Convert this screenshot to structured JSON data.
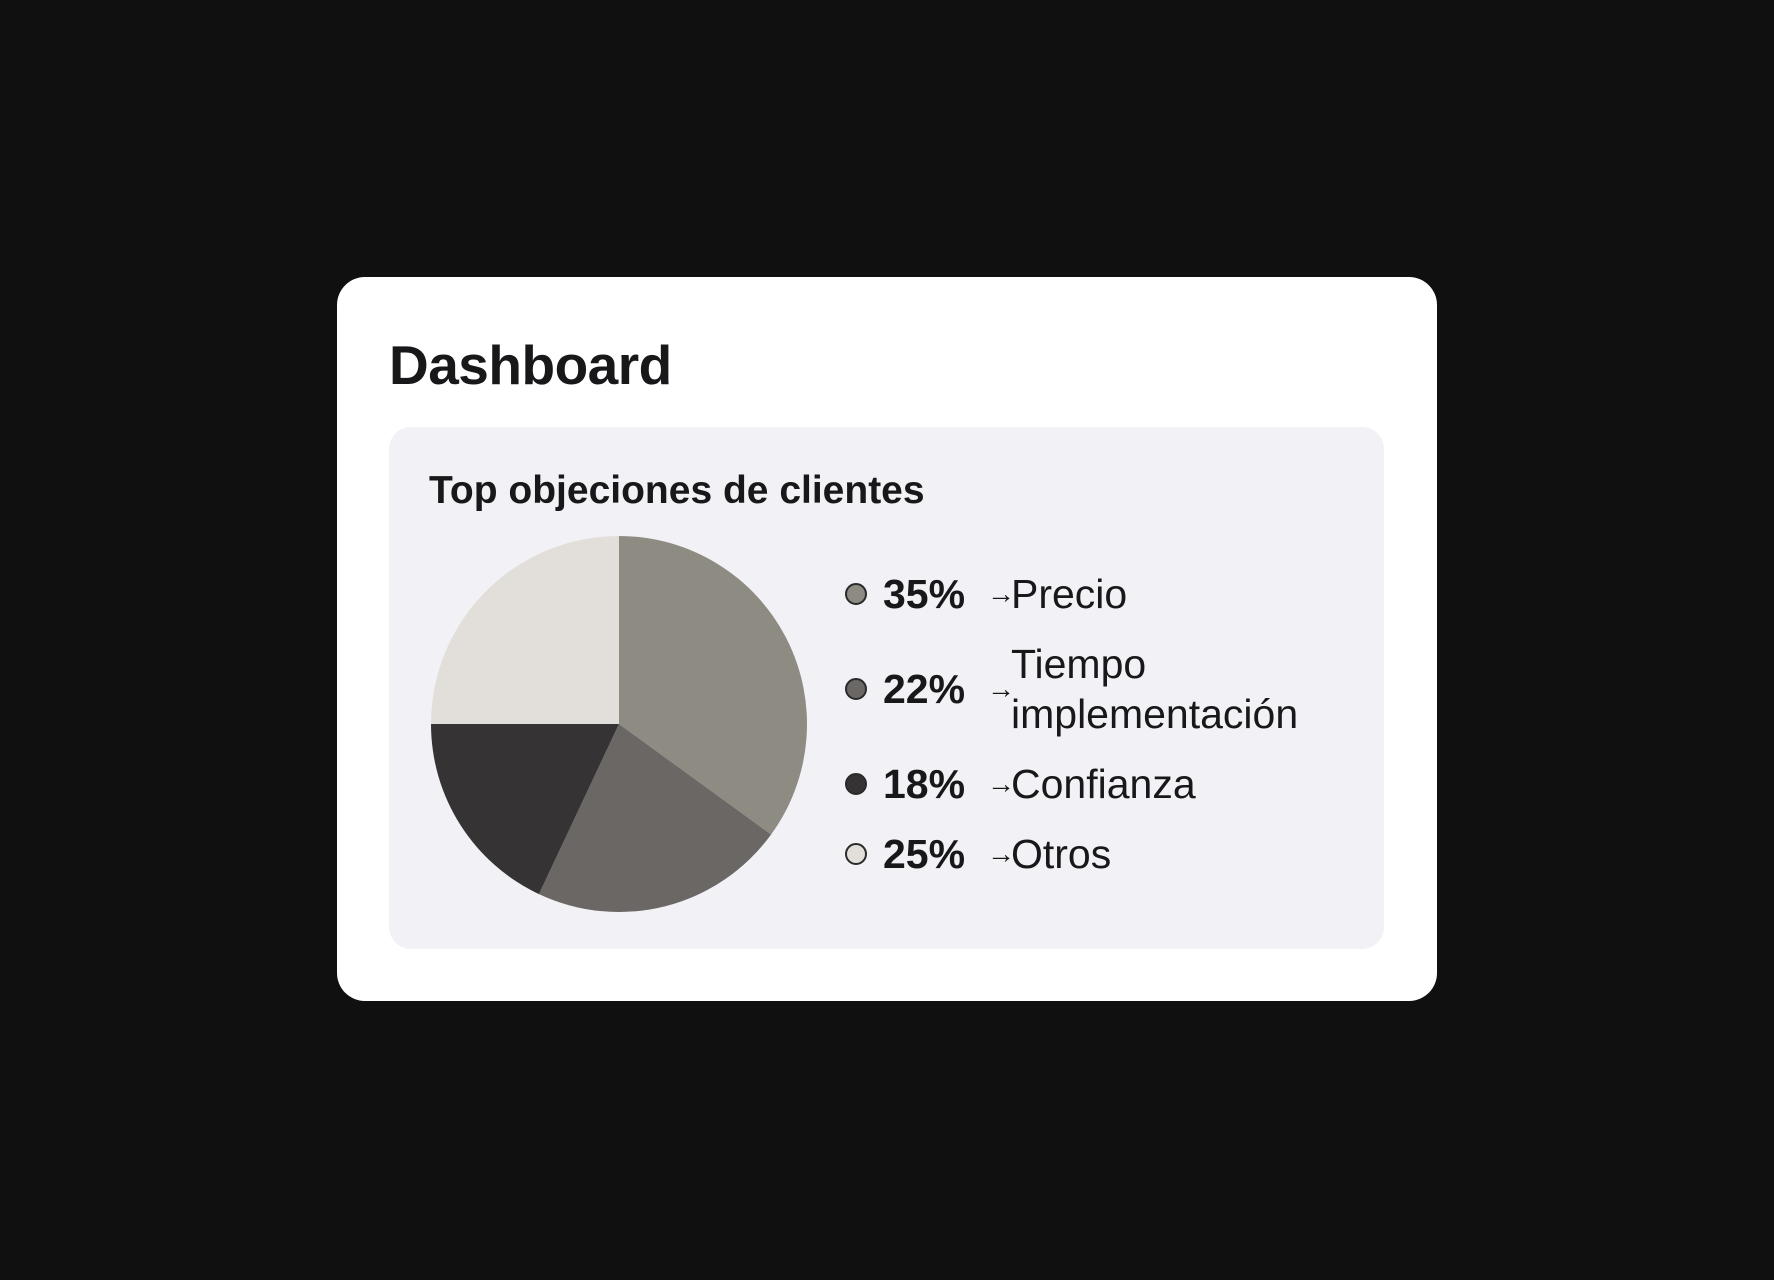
{
  "header": {
    "title": "Dashboard"
  },
  "chart_data": {
    "type": "pie",
    "title": "Top objeciones de clientes",
    "start_angle": "top",
    "direction": "clockwise",
    "slices": [
      {
        "label": "Precio",
        "value": 35,
        "value_label": "35%",
        "color": "#8e8b82"
      },
      {
        "label": "Tiempo implementación",
        "label_lines": [
          "Tiempo",
          "implementación"
        ],
        "value": 22,
        "value_label": "22%",
        "color": "#6a6765"
      },
      {
        "label": "Confianza",
        "value": 18,
        "value_label": "18%",
        "color": "#363334"
      },
      {
        "label": "Otros",
        "value": 25,
        "value_label": "25%",
        "color": "#e2dfdb"
      }
    ],
    "legend_placement": "right",
    "legend_arrow": "→"
  }
}
